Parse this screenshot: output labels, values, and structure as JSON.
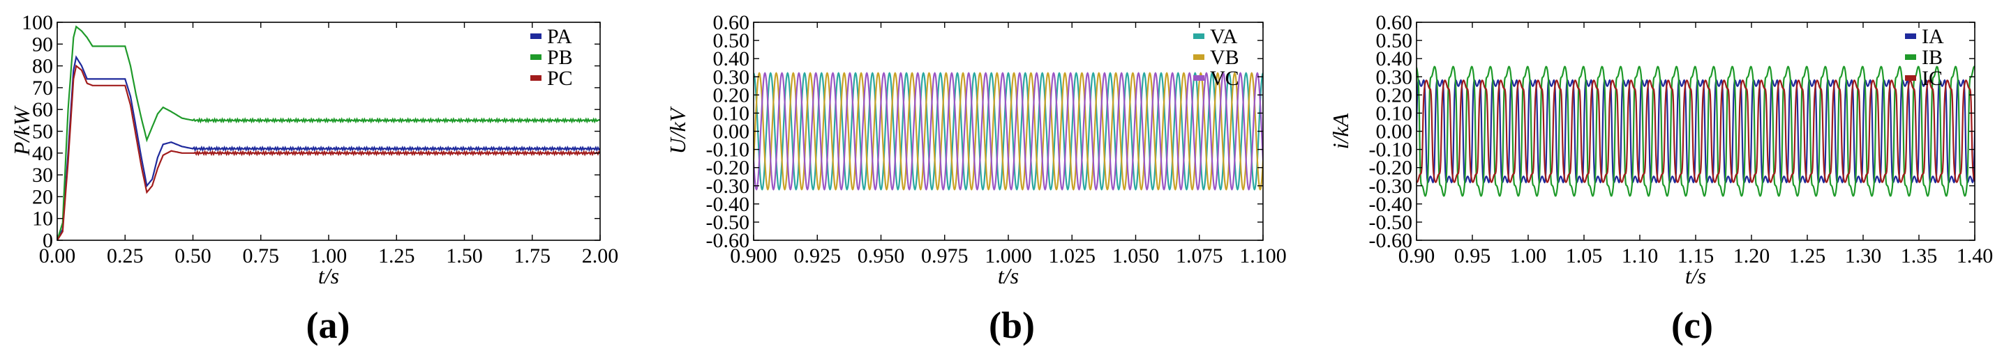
{
  "colors": {
    "A": "#1f2a9c",
    "B": "#1f9a2a",
    "C": "#a11c1c",
    "VA": "#2aa8a0",
    "VB": "#c9a227",
    "VC": "#9a56c4"
  },
  "chart_data": [
    {
      "type": "line",
      "panel_label": "(a)",
      "xlabel": "t/s",
      "ylabel": "P/kW",
      "xlim": [
        0,
        2.0
      ],
      "ylim": [
        0,
        100
      ],
      "xticks": [
        "0.00",
        "0.25",
        "0.50",
        "0.75",
        "1.00",
        "1.25",
        "1.50",
        "1.75",
        "2.00"
      ],
      "yticks": [
        "0",
        "10",
        "20",
        "30",
        "40",
        "50",
        "60",
        "70",
        "80",
        "90",
        "100"
      ],
      "legend": [
        "PA",
        "PB",
        "PC"
      ],
      "legend_position": "top-right",
      "series": [
        {
          "name": "PA",
          "color_key": "A",
          "x": [
            0,
            0.02,
            0.04,
            0.06,
            0.07,
            0.09,
            0.11,
            0.13,
            0.16,
            0.19,
            0.22,
            0.25,
            0.27,
            0.29,
            0.31,
            0.33,
            0.35,
            0.37,
            0.39,
            0.42,
            0.46,
            0.5,
            0.6,
            0.8,
            1.0,
            1.2,
            1.4,
            1.6,
            1.8,
            2.0
          ],
          "y": [
            0,
            5,
            40,
            78,
            84,
            80,
            74,
            74,
            74,
            74,
            74,
            74,
            66,
            52,
            38,
            25,
            28,
            38,
            44,
            45,
            43,
            42,
            42,
            42,
            42,
            42,
            42,
            42,
            42,
            42
          ]
        },
        {
          "name": "PB",
          "color_key": "B",
          "x": [
            0,
            0.02,
            0.04,
            0.06,
            0.07,
            0.09,
            0.11,
            0.13,
            0.16,
            0.19,
            0.22,
            0.25,
            0.27,
            0.29,
            0.31,
            0.33,
            0.35,
            0.37,
            0.39,
            0.42,
            0.46,
            0.5,
            0.6,
            0.8,
            1.0,
            1.2,
            1.4,
            1.6,
            1.8,
            2.0
          ],
          "y": [
            0,
            8,
            60,
            93,
            98,
            96,
            93,
            89,
            89,
            89,
            89,
            89,
            80,
            67,
            56,
            46,
            52,
            58,
            61,
            59,
            56,
            55,
            55,
            55,
            55,
            55,
            55,
            55,
            55,
            55
          ]
        },
        {
          "name": "PC",
          "color_key": "C",
          "x": [
            0,
            0.02,
            0.04,
            0.06,
            0.07,
            0.09,
            0.11,
            0.13,
            0.16,
            0.19,
            0.22,
            0.25,
            0.27,
            0.29,
            0.31,
            0.33,
            0.35,
            0.37,
            0.39,
            0.42,
            0.46,
            0.5,
            0.6,
            0.8,
            1.0,
            1.2,
            1.4,
            1.6,
            1.8,
            2.0
          ],
          "y": [
            0,
            4,
            36,
            74,
            80,
            78,
            72,
            71,
            71,
            71,
            71,
            71,
            62,
            48,
            34,
            22,
            25,
            33,
            39,
            41,
            40,
            40,
            40,
            40,
            40,
            40,
            40,
            40,
            40,
            40
          ]
        }
      ]
    },
    {
      "type": "line",
      "panel_label": "(b)",
      "xlabel": "t/s",
      "ylabel": "U/kV",
      "xlim": [
        0.9,
        1.1
      ],
      "ylim": [
        -0.6,
        0.6
      ],
      "xticks": [
        "0.900",
        "0.925",
        "0.950",
        "0.975",
        "1.000",
        "1.025",
        "1.050",
        "1.075",
        "1.100"
      ],
      "yticks": [
        "-0.60",
        "-0.50",
        "-0.40",
        "-0.30",
        "-0.20",
        "-0.10",
        "0.00",
        "0.10",
        "0.20",
        "0.30",
        "0.40",
        "0.50",
        "0.60"
      ],
      "legend": [
        "VA",
        "VB",
        "VC"
      ],
      "legend_position": "top-right",
      "waveform": {
        "shape": "sine",
        "amplitude": 0.32,
        "frequency_hz": 150,
        "phases_deg": [
          90,
          -30,
          -150
        ]
      },
      "series": [
        {
          "name": "VA",
          "color_key": "VA"
        },
        {
          "name": "VB",
          "color_key": "VB"
        },
        {
          "name": "VC",
          "color_key": "VC"
        }
      ]
    },
    {
      "type": "line",
      "panel_label": "(c)",
      "xlabel": "t/s",
      "ylabel": "i/kA",
      "xlim": [
        0.9,
        1.4
      ],
      "ylim": [
        -0.6,
        0.6
      ],
      "xticks": [
        "0.90",
        "0.95",
        "1.00",
        "1.05",
        "1.10",
        "1.15",
        "1.20",
        "1.25",
        "1.30",
        "1.35",
        "1.40"
      ],
      "yticks": [
        "-0.60",
        "-0.50",
        "-0.40",
        "-0.30",
        "-0.20",
        "-0.10",
        "0.00",
        "0.10",
        "0.20",
        "0.30",
        "0.40",
        "0.50",
        "0.60"
      ],
      "legend": [
        "IA",
        "IB",
        "IC"
      ],
      "legend_position": "top-right",
      "waveform": {
        "shape": "square-ish",
        "frequency_hz": 60,
        "phases_deg": [
          0,
          120,
          240
        ]
      },
      "series": [
        {
          "name": "IA",
          "color_key": "A",
          "amplitude": 0.27
        },
        {
          "name": "IB",
          "color_key": "B",
          "amplitude": 0.33
        },
        {
          "name": "IC",
          "color_key": "C",
          "amplitude": 0.26
        }
      ]
    }
  ]
}
